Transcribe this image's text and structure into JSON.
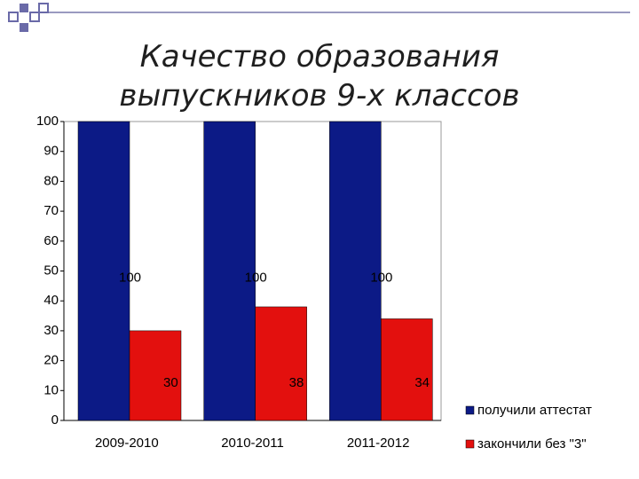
{
  "chart_data": {
    "type": "bar",
    "title": "Качество образования выпускников 9-х классов",
    "categories": [
      "2009-2010",
      "2010-2011",
      "2011-2012"
    ],
    "series": [
      {
        "name": "получили аттестат",
        "color": "#0c1a86",
        "values": [
          100,
          100,
          100
        ]
      },
      {
        "name": "закончили без \"3\"",
        "color": "#e3100e",
        "values": [
          30,
          38,
          34
        ]
      }
    ],
    "ylim": [
      0,
      100
    ],
    "yticks": [
      0,
      10,
      20,
      30,
      40,
      50,
      60,
      70,
      80,
      90,
      100
    ],
    "grid": false,
    "legend": "right"
  }
}
